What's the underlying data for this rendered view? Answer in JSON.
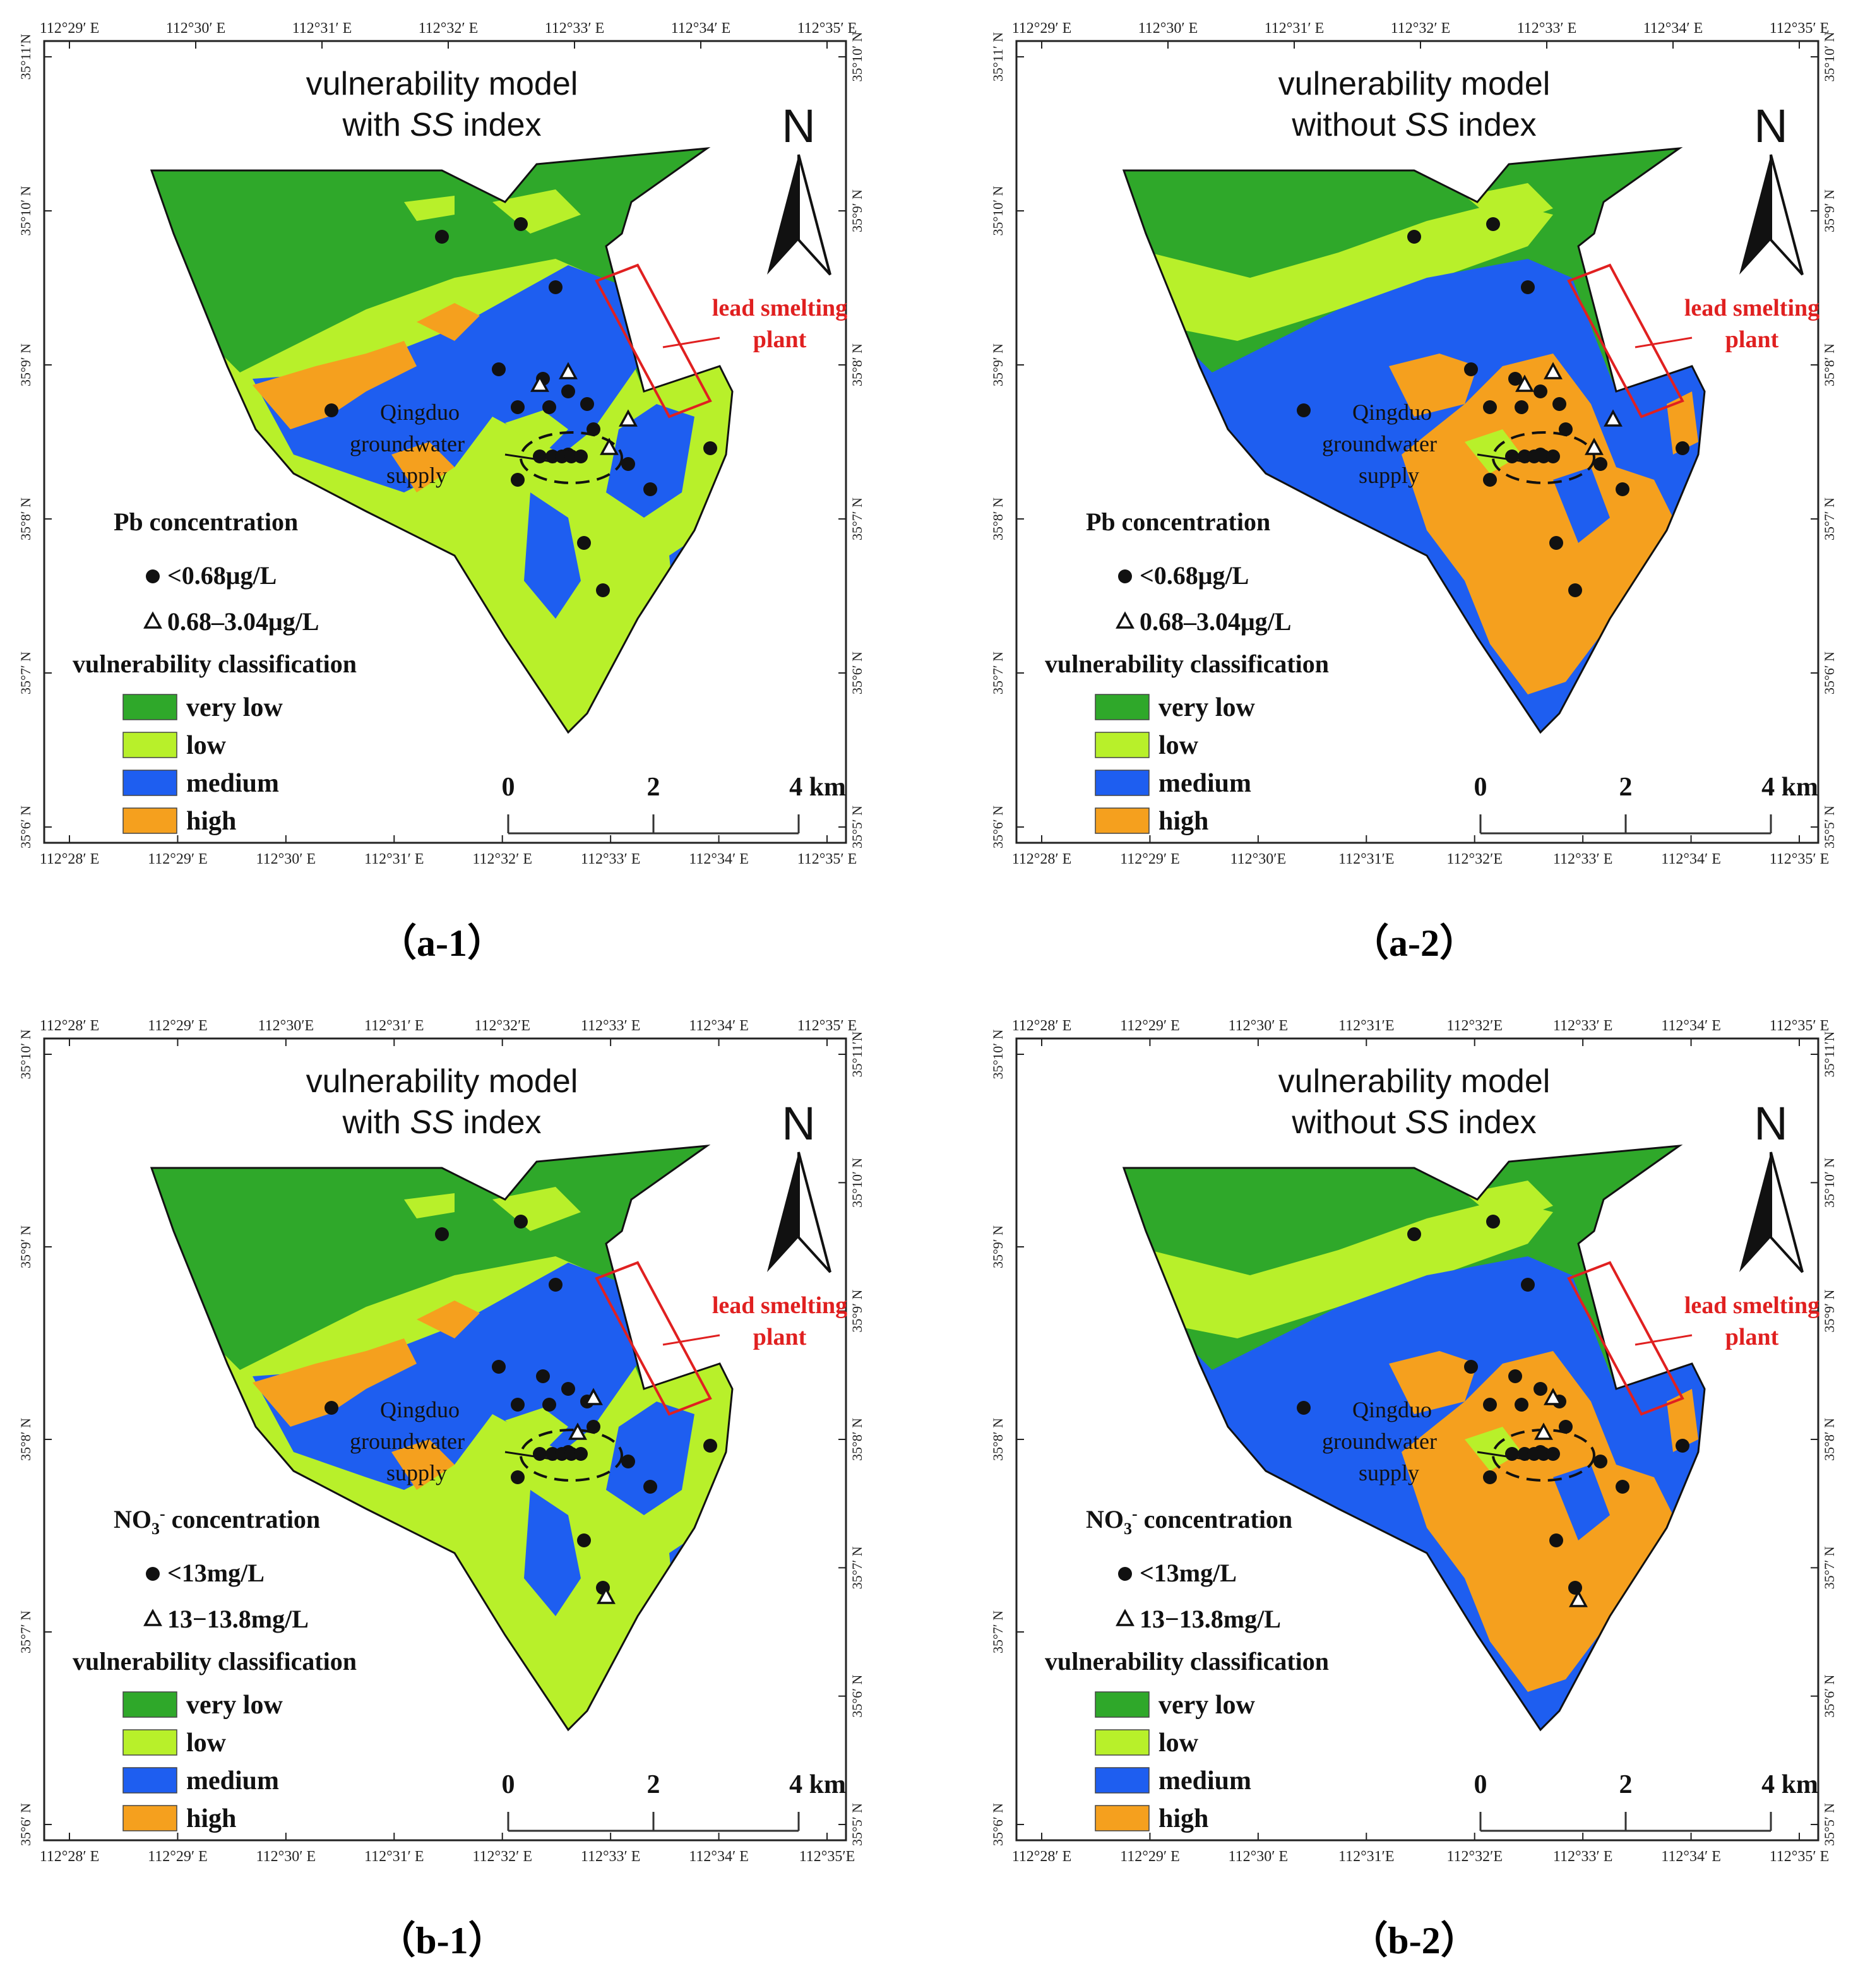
{
  "panels": [
    {
      "id": "a-1",
      "caption": "（a-1）",
      "title_line1": "vulnerability model",
      "title_line2_pre": "with ",
      "title_line2_ss": "SS",
      "title_line2_post": " index",
      "variant": "with",
      "conc_title": "Pb concentration",
      "conc_title_sub": "",
      "conc_title_post": "",
      "conc_circle_label": "<0.68μg/L",
      "conc_triangle_label": "0.68–3.04μg/L",
      "triangles": "a1",
      "top_ticks": [
        "112°29′ E",
        "112°30′ E",
        "112°31′ E",
        "112°32′ E",
        "112°33′ E",
        "112°34′ E",
        "112°35′ E"
      ],
      "bottom_ticks": [
        "112°28′ E",
        "112°29′ E",
        "112°30′ E",
        "112°31′ E",
        "112°32′ E",
        "112°33′ E",
        "112°34′ E",
        "112°35′ E"
      ],
      "left_ticks": [
        "35°11′N",
        "35°10′ N",
        "35°9′ N",
        "35°8′ N",
        "35°7′ N",
        "35°6′ N"
      ],
      "right_ticks": [
        "35°10′ N",
        "35°9′ N",
        "35°8′ N",
        "35°7′ N",
        "35°6′ N",
        "35°5′ N"
      ]
    },
    {
      "id": "a-2",
      "caption": "（a-2）",
      "title_line1": "vulnerability model",
      "title_line2_pre": "without ",
      "title_line2_ss": "SS",
      "title_line2_post": " index",
      "variant": "without",
      "conc_title": "Pb concentration",
      "conc_title_sub": "",
      "conc_title_post": "",
      "conc_circle_label": "<0.68μg/L",
      "conc_triangle_label": "0.68–3.04μg/L",
      "triangles": "a2",
      "top_ticks": [
        "112°29′ E",
        "112°30′ E",
        "112°31′ E",
        "112°32′ E",
        "112°33′ E",
        "112°34′ E",
        "112°35′ E"
      ],
      "bottom_ticks": [
        "112°28′ E",
        "112°29′ E",
        "112°30′E",
        "112°31′E",
        "112°32′E",
        "112°33′ E",
        "112°34′ E",
        "112°35′ E"
      ],
      "left_ticks": [
        "35°11′ N",
        "35°10′ N",
        "35°9′ N",
        "35°8′ N",
        "35°7′ N",
        "35°6′ N"
      ],
      "right_ticks": [
        "35°10′ N",
        "35°9′ N",
        "35°8′ N",
        "35°7′ N",
        "35°6′ N",
        "35°5′ N"
      ]
    },
    {
      "id": "b-1",
      "caption": "（b-1）",
      "title_line1": "vulnerability model",
      "title_line2_pre": "with ",
      "title_line2_ss": "SS",
      "title_line2_post": " index",
      "variant": "with",
      "conc_title": "NO",
      "conc_title_sub": "3",
      "conc_title_sup": "-",
      "conc_title_post": " concentration",
      "conc_circle_label": "<13mg/L",
      "conc_triangle_label": "13−13.8mg/L",
      "triangles": "b1",
      "top_ticks": [
        "112°28′ E",
        "112°29′ E",
        "112°30′E",
        "112°31′ E",
        "112°32′E",
        "112°33′ E",
        "112°34′ E",
        "112°35′ E"
      ],
      "bottom_ticks": [
        "112°28′ E",
        "112°29′ E",
        "112°30′ E",
        "112°31′ E",
        "112°32′ E",
        "112°33′ E",
        "112°34′ E",
        "112°35′E"
      ],
      "left_ticks": [
        "35°10′ N",
        "35°9′ N",
        "35°8′ N",
        "35°7′ N",
        "35°6′ N"
      ],
      "right_ticks": [
        "35°11′N",
        "35°10′ N",
        "35°9′ N",
        "35°8′ N",
        "35°7′ N",
        "35°6′ N",
        "35°5′ N"
      ]
    },
    {
      "id": "b-2",
      "caption": "（b-2）",
      "title_line1": "vulnerability model",
      "title_line2_pre": "without ",
      "title_line2_ss": "SS",
      "title_line2_post": " index",
      "variant": "without",
      "conc_title": "NO",
      "conc_title_sub": "3",
      "conc_title_sup": "-",
      "conc_title_post": " concentration",
      "conc_circle_label": "<13mg/L",
      "conc_triangle_label": "13−13.8mg/L",
      "triangles": "b2",
      "top_ticks": [
        "112°28′ E",
        "112°29′ E",
        "112°30′ E",
        "112°31′E",
        "112°32′E",
        "112°33′ E",
        "112°34′ E",
        "112°35′ E"
      ],
      "bottom_ticks": [
        "112°28′ E",
        "112°29′ E",
        "112°30′ E",
        "112°31′E",
        "112°32′E",
        "112°33′ E",
        "112°34′ E",
        "112°35′ E"
      ],
      "left_ticks": [
        "35°10′ N",
        "35°9′ N",
        "35°8′ N",
        "35°7′ N",
        "35°6′ N"
      ],
      "right_ticks": [
        "35°11′N",
        "35°10′ N",
        "35°9′ N",
        "35°8′ N",
        "35°7′ N",
        "35°6′ N",
        "35°5′ N"
      ]
    }
  ],
  "common": {
    "north": "N",
    "plant_line1": "lead smelting",
    "plant_line2": "plant",
    "supply_line1": "Qingduo",
    "supply_line2": "groundwater",
    "supply_line3": "supply",
    "class_title": "vulnerability classification",
    "classes": [
      {
        "label": "very low",
        "color": "#2fa82a"
      },
      {
        "label": "low",
        "color": "#b8f02a"
      },
      {
        "label": "medium",
        "color": "#1e5ef0"
      },
      {
        "label": "high",
        "color": "#f5a01e"
      }
    ],
    "scale_labels": [
      "0",
      "2",
      "4 km"
    ],
    "plant_color": "#e02020"
  }
}
